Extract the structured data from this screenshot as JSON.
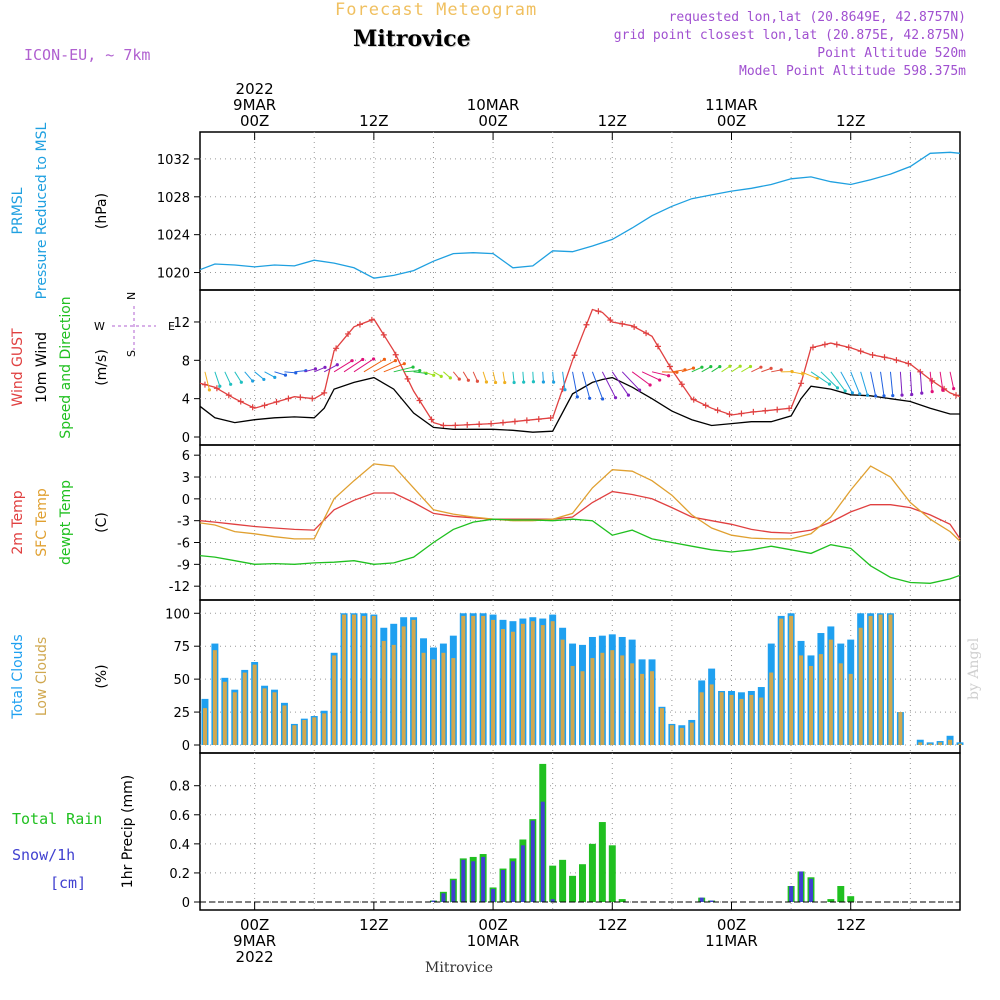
{
  "header": {
    "forecast_title": "Forecast Meteogram",
    "location": "Mitrovice",
    "model": "ICON-EU, ~ 7km",
    "requested": "requested lon,lat (20.8649E, 42.8757N)",
    "grid_point": "grid point closest lon,lat (20.875E, 42.875N)",
    "point_altitude": "Point Altitude 520m",
    "model_altitude": "Model Point Altitude 598.375m"
  },
  "footer": {
    "location": "Mitrovice",
    "watermark": "by Angel"
  },
  "colors": {
    "pressure": "#1fa0e0",
    "gust": "#e04040",
    "wind": "#000000",
    "temp2m": "#e04040",
    "sfc": "#e0a030",
    "dewpt": "#20c020",
    "total_cloud": "#1fa0f0",
    "low_cloud": "#d0a850",
    "rain": "#20c020",
    "snow": "#4040d0",
    "label_purple": "#b060d0"
  },
  "time_axis": {
    "top": [
      {
        "hour": 0,
        "lines": [
          "2022",
          "9MAR",
          "00Z"
        ]
      },
      {
        "hour": 12,
        "lines": [
          "12Z"
        ]
      },
      {
        "hour": 24,
        "lines": [
          "10MAR",
          "00Z"
        ]
      },
      {
        "hour": 36,
        "lines": [
          "12Z"
        ]
      },
      {
        "hour": 48,
        "lines": [
          "11MAR",
          "00Z"
        ]
      },
      {
        "hour": 60,
        "lines": [
          "12Z"
        ]
      }
    ],
    "bottom": [
      {
        "hour": 0,
        "lines": [
          "00Z",
          "9MAR",
          "2022"
        ]
      },
      {
        "hour": 12,
        "lines": [
          "12Z"
        ]
      },
      {
        "hour": 24,
        "lines": [
          "00Z",
          "10MAR"
        ]
      },
      {
        "hour": 36,
        "lines": [
          "12Z"
        ]
      },
      {
        "hour": 48,
        "lines": [
          "00Z",
          "11MAR"
        ]
      },
      {
        "hour": 60,
        "lines": [
          "12Z"
        ]
      }
    ],
    "hour_range": [
      -5.5,
      71
    ]
  },
  "chart_data": [
    {
      "type": "line",
      "title": "PRMSL Pressure Reduced to MSL",
      "ylabel_lines": [
        "PRMSL",
        "Pressure Reduced to MSL"
      ],
      "unit": "(hPa)",
      "ylim": [
        1019,
        1034
      ],
      "yticks": [
        1020,
        1024,
        1028,
        1032
      ],
      "x": [
        -5.5,
        -4,
        -2,
        0,
        2,
        4,
        6,
        8,
        10,
        12,
        14,
        16,
        18,
        20,
        22,
        24,
        26,
        28,
        30,
        32,
        34,
        36,
        38,
        40,
        42,
        44,
        46,
        48,
        50,
        52,
        54,
        56,
        58,
        60,
        62,
        64,
        66,
        68,
        70,
        71
      ],
      "series": [
        {
          "name": "PRMSL",
          "values": [
            1020.3,
            1020.9,
            1020.8,
            1020.6,
            1020.8,
            1020.7,
            1021.3,
            1021.0,
            1020.5,
            1019.4,
            1019.7,
            1020.2,
            1021.2,
            1022.0,
            1022.1,
            1022.0,
            1020.5,
            1020.7,
            1022.3,
            1022.2,
            1022.8,
            1023.5,
            1024.7,
            1026.0,
            1027.0,
            1027.8,
            1028.2,
            1028.6,
            1028.9,
            1029.3,
            1029.9,
            1030.1,
            1029.6,
            1029.3,
            1029.8,
            1030.4,
            1031.2,
            1032.6,
            1032.7,
            1032.6
          ]
        }
      ]
    },
    {
      "type": "line",
      "title": "Wind GUST / 10m Wind Speed and Direction",
      "ylabel_lines": [
        "Wind GUST",
        "10m Wind",
        "Speed and Direction"
      ],
      "unit": "(m/s)",
      "compass": {
        "n": "N",
        "e": "E",
        "s": "S",
        "w": "W"
      },
      "ylim": [
        0,
        14.5
      ],
      "yticks": [
        0,
        4,
        8,
        12
      ],
      "x": [
        -5.5,
        -4,
        -2,
        0,
        2,
        4,
        6,
        7,
        8,
        10,
        12,
        14,
        16,
        18,
        19,
        20,
        22,
        24,
        26,
        28,
        30,
        32,
        34,
        35,
        36,
        38,
        40,
        42,
        44,
        46,
        48,
        50,
        52,
        54,
        55,
        56,
        58,
        60,
        62,
        64,
        66,
        68,
        70,
        71
      ],
      "series": [
        {
          "name": "Wind GUST",
          "values": [
            5.6,
            5.2,
            4.0,
            3.0,
            3.6,
            4.2,
            4.0,
            4.6,
            9.0,
            11.5,
            12.3,
            9.0,
            4.8,
            1.5,
            1.2,
            1.2,
            1.3,
            1.4,
            1.6,
            1.8,
            2.0,
            8.0,
            13.3,
            13.0,
            12.0,
            11.6,
            10.5,
            7.0,
            4.0,
            3.0,
            2.3,
            2.6,
            2.8,
            3.0,
            5.6,
            9.3,
            9.8,
            9.3,
            8.6,
            8.2,
            7.6,
            6.0,
            4.6,
            4.2
          ]
        },
        {
          "name": "10m Wind",
          "values": [
            3.2,
            2.0,
            1.5,
            1.8,
            2.0,
            2.1,
            2.0,
            3.0,
            5.0,
            5.7,
            6.2,
            5.0,
            2.5,
            1.0,
            0.9,
            0.8,
            0.8,
            0.8,
            0.7,
            0.5,
            0.6,
            4.5,
            5.7,
            6.0,
            6.2,
            5.2,
            4.0,
            2.7,
            1.8,
            1.2,
            1.4,
            1.6,
            1.6,
            2.2,
            4.0,
            5.3,
            5.0,
            4.4,
            4.3,
            4.0,
            3.7,
            3.0,
            2.4,
            2.4
          ]
        }
      ],
      "barb_colors": [
        "#e05040",
        "#f0b020",
        "#20c0c0",
        "#1fa0e0",
        "#2060e0",
        "#8020c0",
        "#e0107a",
        "#f06010",
        "#20c040",
        "#a0e020"
      ]
    },
    {
      "type": "line",
      "title": "2m Temp / SFC Temp / dewpt Temp",
      "ylabel_lines": [
        "2m Temp",
        "SFC Temp",
        "dewpt Temp"
      ],
      "unit": "(C)",
      "ylim": [
        -12.8,
        6.3
      ],
      "yticks": [
        -12,
        -9,
        -6,
        -3,
        0,
        3,
        6
      ],
      "x": [
        -5.5,
        -4,
        -2,
        0,
        2,
        4,
        6,
        8,
        10,
        12,
        14,
        16,
        18,
        20,
        22,
        24,
        26,
        28,
        30,
        32,
        34,
        36,
        38,
        40,
        42,
        44,
        46,
        48,
        50,
        52,
        54,
        56,
        58,
        60,
        62,
        64,
        66,
        68,
        70,
        71
      ],
      "series": [
        {
          "name": "2m Temp",
          "values": [
            -3.0,
            -3.2,
            -3.5,
            -3.8,
            -4.0,
            -4.2,
            -4.3,
            -1.5,
            -0.2,
            0.8,
            0.8,
            -0.5,
            -2.0,
            -2.4,
            -2.6,
            -2.8,
            -2.8,
            -2.8,
            -2.8,
            -2.5,
            -0.5,
            1.0,
            0.6,
            0.0,
            -1.2,
            -2.5,
            -3.0,
            -3.5,
            -4.2,
            -4.6,
            -4.7,
            -4.3,
            -3.2,
            -1.8,
            -0.8,
            -0.8,
            -1.2,
            -2.2,
            -3.5,
            -5.5
          ]
        },
        {
          "name": "SFC Temp",
          "values": [
            -3.3,
            -3.6,
            -4.5,
            -4.8,
            -5.2,
            -5.5,
            -5.5,
            0.0,
            2.5,
            4.8,
            4.5,
            1.5,
            -1.5,
            -2.1,
            -2.5,
            -2.8,
            -3.0,
            -3.0,
            -2.8,
            -2.0,
            1.5,
            4.0,
            3.8,
            2.5,
            0.5,
            -2.2,
            -4.0,
            -5.0,
            -5.4,
            -5.5,
            -5.5,
            -4.8,
            -2.5,
            1.2,
            4.5,
            3.0,
            -0.5,
            -2.8,
            -4.5,
            -5.8
          ]
        },
        {
          "name": "dewpt Temp",
          "values": [
            -7.8,
            -8.0,
            -8.5,
            -9.0,
            -8.9,
            -9.0,
            -8.8,
            -8.7,
            -8.5,
            -9.0,
            -8.8,
            -8.0,
            -6.0,
            -4.2,
            -3.2,
            -2.8,
            -2.9,
            -2.9,
            -3.0,
            -2.8,
            -3.0,
            -5.0,
            -4.3,
            -5.5,
            -6.0,
            -6.5,
            -7.0,
            -7.3,
            -7.0,
            -6.5,
            -7.0,
            -7.5,
            -6.3,
            -6.8,
            -9.2,
            -10.8,
            -11.5,
            -11.6,
            -11.0,
            -10.5
          ]
        }
      ]
    },
    {
      "type": "bar",
      "title": "Total Clouds / Low Clouds",
      "ylabel_lines": [
        "Total Clouds",
        "Low Clouds"
      ],
      "unit": "(%)",
      "ylim": [
        0,
        104
      ],
      "yticks": [
        0,
        25,
        50,
        75,
        100
      ],
      "x_start": -5,
      "x_step": 1,
      "series": [
        {
          "name": "Total Clouds",
          "values": [
            35,
            77,
            51,
            42,
            57,
            63,
            45,
            42,
            32,
            16,
            20,
            22,
            26,
            70,
            100,
            100,
            100,
            99,
            89,
            92,
            97,
            97,
            81,
            74,
            77,
            83,
            100,
            100,
            100,
            99,
            95,
            94,
            96,
            97,
            96,
            99,
            89,
            77,
            76,
            82,
            83,
            84,
            82,
            80,
            65,
            65,
            29,
            16,
            15,
            19,
            49,
            58,
            41,
            41,
            40,
            41,
            44,
            77,
            98,
            100,
            79,
            68,
            85,
            90,
            77,
            80,
            100,
            100,
            100,
            100,
            25,
            0,
            4,
            2,
            3,
            7,
            2
          ]
        },
        {
          "name": "Low Clouds",
          "values": [
            28,
            72,
            48,
            40,
            55,
            61,
            43,
            40,
            30,
            15,
            19,
            21,
            24,
            68,
            99,
            99,
            98,
            98,
            79,
            76,
            90,
            95,
            70,
            65,
            70,
            66,
            98,
            98,
            98,
            95,
            88,
            86,
            92,
            94,
            91,
            94,
            80,
            60,
            56,
            66,
            70,
            72,
            68,
            62,
            54,
            56,
            28,
            15,
            13,
            17,
            40,
            46,
            40,
            38,
            35,
            38,
            36,
            55,
            96,
            98,
            68,
            60,
            69,
            80,
            62,
            54,
            89,
            98,
            99,
            99,
            25,
            0,
            2,
            1,
            2,
            4,
            1
          ]
        }
      ]
    },
    {
      "type": "bar",
      "title": "1hr Precip (mm)",
      "ylabel_lines": [
        "Total Rain",
        "Snow/1h",
        "[cm]"
      ],
      "unit": "1hr Precip (mm)",
      "ylim": [
        0,
        0.97
      ],
      "yticks": [
        0,
        0.2,
        0.4,
        0.6,
        0.8
      ],
      "ytick_labels": [
        "0",
        "0.2",
        "0.4",
        "0.6",
        "0.8"
      ],
      "x_start": -5,
      "x_step": 1,
      "series": [
        {
          "name": "Total Rain",
          "values": [
            0,
            0,
            0,
            0,
            0,
            0,
            0,
            0,
            0,
            0,
            0,
            0,
            0,
            0,
            0,
            0,
            0,
            0,
            0,
            0,
            0,
            0,
            0,
            0.01,
            0.07,
            0.16,
            0.3,
            0.31,
            0.33,
            0.1,
            0.23,
            0.3,
            0.43,
            0.57,
            0.95,
            0.25,
            0.29,
            0.18,
            0.26,
            0.4,
            0.55,
            0.39,
            0.02,
            0,
            0,
            0,
            0,
            0,
            0,
            0,
            0.03,
            0.01,
            0,
            0,
            0,
            0,
            0,
            0,
            0,
            0.11,
            0.21,
            0.17,
            0,
            0.02,
            0.11,
            0.04,
            0,
            0,
            0,
            0,
            0,
            0,
            0,
            0,
            0,
            0,
            0
          ]
        },
        {
          "name": "Snow/1h",
          "values": [
            0,
            0,
            0,
            0,
            0,
            0,
            0,
            0,
            0,
            0,
            0,
            0,
            0,
            0,
            0,
            0,
            0,
            0,
            0,
            0,
            0,
            0,
            0,
            0.01,
            0.06,
            0.15,
            0.29,
            0.28,
            0.31,
            0.09,
            0.22,
            0.28,
            0.39,
            0.56,
            0.69,
            0.02,
            0,
            0,
            0,
            0,
            0,
            0,
            0,
            0,
            0,
            0,
            0,
            0,
            0,
            0,
            0.03,
            0.01,
            0,
            0,
            0,
            0,
            0,
            0,
            0,
            0.11,
            0.21,
            0.16,
            0,
            0,
            0,
            0,
            0,
            0,
            0,
            0,
            0,
            0,
            0,
            0,
            0,
            0,
            0
          ]
        }
      ]
    }
  ]
}
